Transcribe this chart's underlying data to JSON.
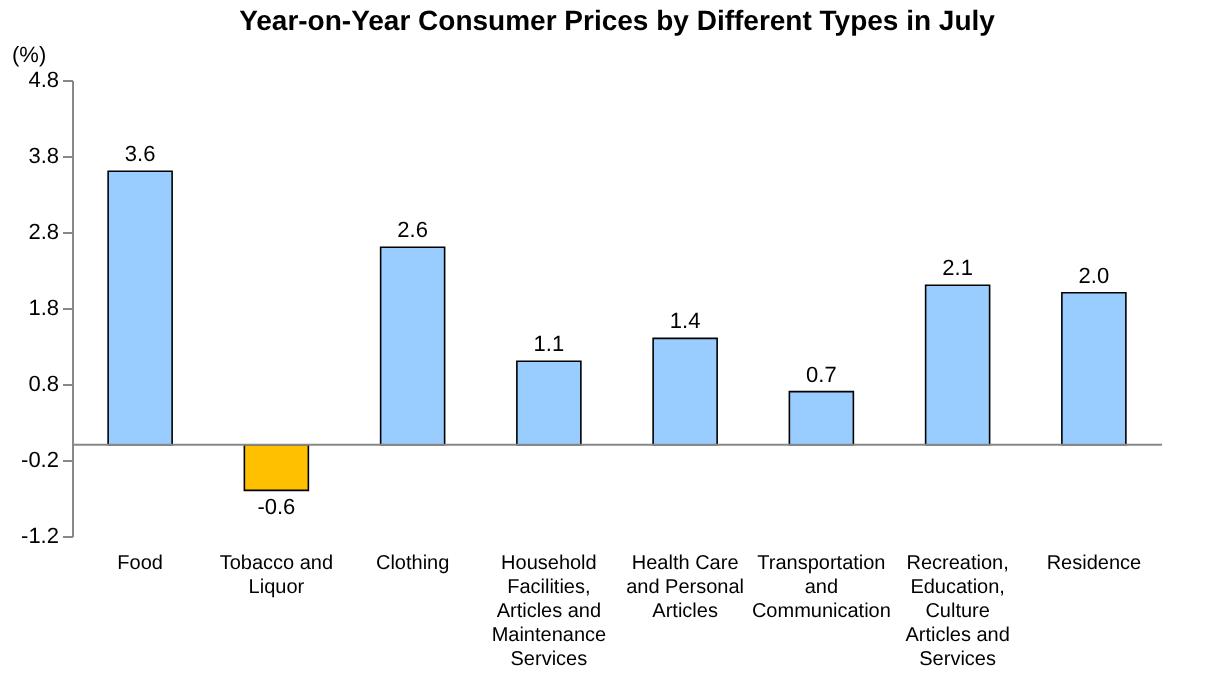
{
  "chart_data": {
    "type": "bar",
    "title": "Year-on-Year Consumer Prices by Different Types in July",
    "ylabel": "(%)",
    "categories": [
      "Food",
      "Tobacco and Liquor",
      "Clothing",
      "Household Facilities, Articles and Maintenance Services",
      "Health Care and Personal Articles",
      "Transportation and Communication",
      "Recreation, Education, Culture Articles and Services",
      "Residence"
    ],
    "values": [
      3.6,
      -0.6,
      2.6,
      1.1,
      1.4,
      0.7,
      2.1,
      2.0
    ],
    "colors": [
      "#99ccff",
      "#ffc000",
      "#99ccff",
      "#99ccff",
      "#99ccff",
      "#99ccff",
      "#99ccff",
      "#99ccff"
    ],
    "value_labels": [
      "3.6",
      "-0.6",
      "2.6",
      "1.1",
      "1.4",
      "0.7",
      "2.1",
      "2.0"
    ],
    "ylim": [
      -1.2,
      4.8
    ],
    "yticks": [
      -1.2,
      -0.2,
      0.8,
      1.8,
      2.8,
      3.8,
      4.8
    ],
    "grid": false
  }
}
